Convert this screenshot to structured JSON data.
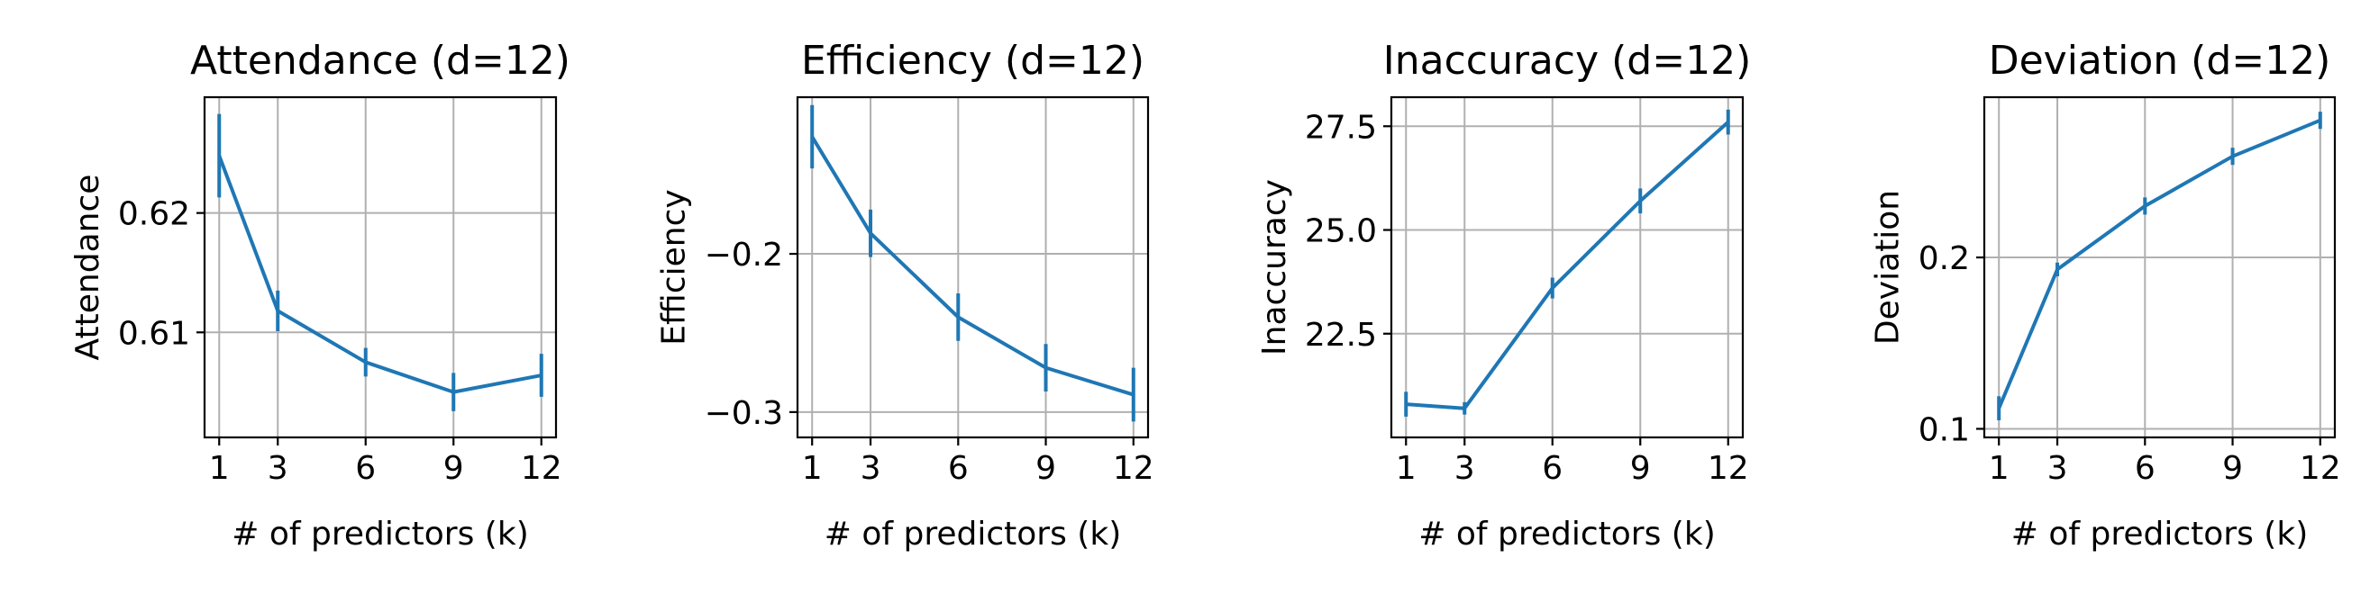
{
  "colors": {
    "series": "#1f77b4",
    "grid": "#b0b0b0",
    "axes": "#000000"
  },
  "chart_data": [
    {
      "type": "line",
      "title": "Attendance (d=12)",
      "xlabel": "# of predictors (k)",
      "ylabel": "Attendance",
      "x": [
        1,
        3,
        6,
        9,
        12
      ],
      "xticks": [
        "1",
        "3",
        "6",
        "9",
        "12"
      ],
      "xlim": [
        0.5,
        12.5
      ],
      "ylim": [
        0.6012,
        0.6297
      ],
      "yticks": [
        0.61,
        0.62
      ],
      "ytick_labels": [
        "0.61",
        "0.62"
      ],
      "grid": true,
      "series": [
        {
          "y": [
            0.6248,
            0.6118,
            0.6075,
            0.605,
            0.6064
          ],
          "yerr": [
            0.0035,
            0.0017,
            0.0012,
            0.0016,
            0.0018
          ]
        }
      ]
    },
    {
      "type": "line",
      "title": "Efficiency (d=12)",
      "xlabel": "# of predictors (k)",
      "ylabel": "Efficiency",
      "x": [
        1,
        3,
        6,
        9,
        12
      ],
      "xticks": [
        "1",
        "3",
        "6",
        "9",
        "12"
      ],
      "xlim": [
        0.5,
        12.5
      ],
      "ylim": [
        -0.316,
        -0.101
      ],
      "yticks": [
        -0.3,
        -0.2
      ],
      "ytick_labels": [
        "−0.3",
        "−0.2"
      ],
      "grid": true,
      "series": [
        {
          "y": [
            -0.126,
            -0.187,
            -0.24,
            -0.272,
            -0.289
          ],
          "yerr": [
            0.02,
            0.015,
            0.015,
            0.015,
            0.017
          ]
        }
      ]
    },
    {
      "type": "line",
      "title": "Inaccuracy (d=12)",
      "xlabel": "# of predictors (k)",
      "ylabel": "Inaccuracy",
      "x": [
        1,
        3,
        6,
        9,
        12
      ],
      "xticks": [
        "1",
        "3",
        "6",
        "9",
        "12"
      ],
      "xlim": [
        0.5,
        12.5
      ],
      "ylim": [
        20.0,
        28.2
      ],
      "yticks": [
        22.5,
        25.0,
        27.5
      ],
      "ytick_labels": [
        "22.5",
        "25.0",
        "27.5"
      ],
      "grid": true,
      "series": [
        {
          "y": [
            20.8,
            20.7,
            23.6,
            25.7,
            27.6
          ],
          "yerr": [
            0.3,
            0.15,
            0.25,
            0.3,
            0.3
          ]
        }
      ]
    },
    {
      "type": "line",
      "title": "Deviation (d=12)",
      "xlabel": "# of predictors (k)",
      "ylabel": "Deviation",
      "x": [
        1,
        3,
        6,
        9,
        12
      ],
      "xticks": [
        "1",
        "3",
        "6",
        "9",
        "12"
      ],
      "xlim": [
        0.5,
        12.5
      ],
      "ylim": [
        0.095,
        0.2935
      ],
      "yticks": [
        0.1,
        0.2
      ],
      "ytick_labels": [
        "0.1",
        "0.2"
      ],
      "grid": true,
      "series": [
        {
          "y": [
            0.112,
            0.193,
            0.23,
            0.259,
            0.28
          ],
          "yerr": [
            0.007,
            0.004,
            0.005,
            0.005,
            0.005
          ]
        }
      ]
    }
  ]
}
